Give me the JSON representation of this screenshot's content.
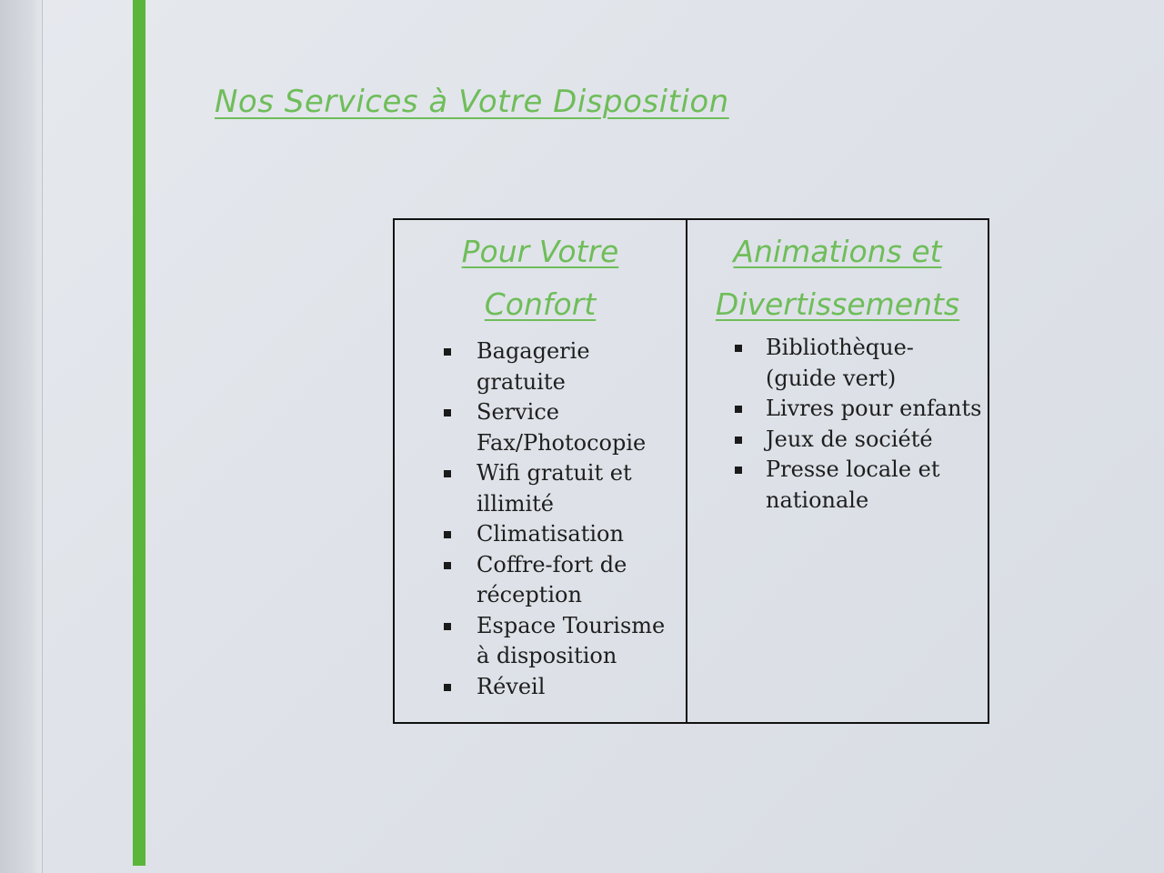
{
  "title": "Nos Services à Votre Disposition",
  "colors": {
    "accent_green": "#6fbd5a",
    "bar_green": "#5bb53a",
    "text": "#1e1e1e"
  },
  "table": {
    "left": {
      "heading_line1": "Pour Votre",
      "heading_line2": "Confort",
      "items": [
        "Bagagerie gratuite",
        "Service Fax/Photocopie",
        "Wifi gratuit et illimité",
        "Climatisation",
        "Coffre-fort de réception",
        "Espace Tourisme à disposition",
        "Réveil"
      ]
    },
    "right": {
      "heading_line1": "Animations et",
      "heading_line2": "Divertissements",
      "items": [
        "Bibliothèque-(guide vert)",
        "Livres pour enfants",
        "Jeux de société",
        "Presse locale et nationale"
      ]
    }
  }
}
